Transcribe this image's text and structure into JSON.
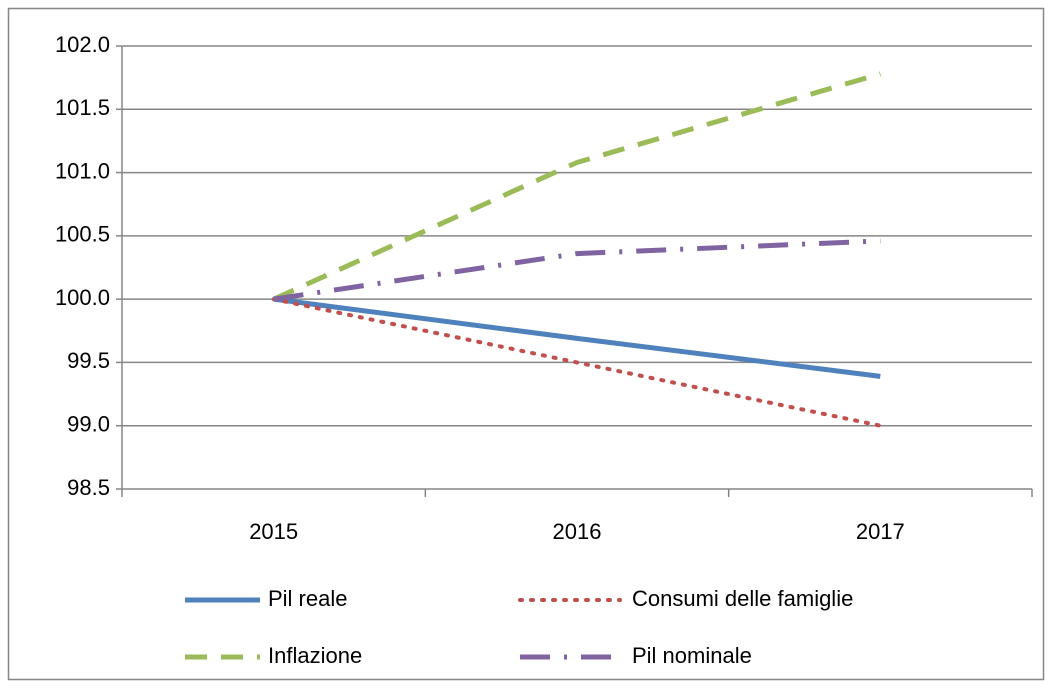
{
  "chart_data": {
    "type": "line",
    "categories": [
      "2015",
      "2016",
      "2017"
    ],
    "series": [
      {
        "name": "Pil reale",
        "color": "#4f81bd",
        "dash": "solid",
        "values": [
          100.0,
          99.69,
          99.39
        ]
      },
      {
        "name": "Consumi delle famiglie",
        "color": "#c0504d",
        "dash": "dot",
        "values": [
          100.0,
          99.5,
          99.0
        ]
      },
      {
        "name": "Inflazione",
        "color": "#9bbb59",
        "dash": "dash",
        "values": [
          100.0,
          101.08,
          101.78
        ]
      },
      {
        "name": "Pil nominale",
        "color": "#8064a2",
        "dash": "dashdot",
        "values": [
          100.0,
          100.36,
          100.46
        ]
      }
    ],
    "ylim": [
      98.5,
      102.0
    ],
    "yticks": [
      98.5,
      {
        "value": 99.0,
        "label": "99.0"
      },
      99.5,
      {
        "value": 100.0,
        "label": "100.0"
      },
      100.5,
      {
        "value": 101.0,
        "label": "101.0"
      },
      101.5,
      {
        "value": 102.0,
        "label": "102.0"
      }
    ],
    "grid": true,
    "legend": "bottom"
  }
}
